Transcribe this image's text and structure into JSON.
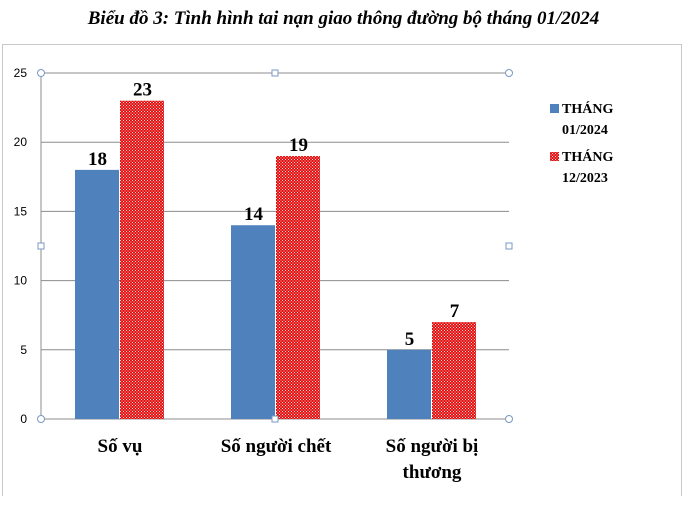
{
  "chart_data": {
    "type": "bar",
    "title": "Biểu đồ 3: Tình hình tai nạn giao thông đường bộ tháng 01/2024",
    "categories": [
      [
        "Số vụ"
      ],
      [
        "Số người chết"
      ],
      [
        "Số người bị",
        "thương"
      ]
    ],
    "series": [
      {
        "name": [
          "THÁNG",
          "01/2024"
        ],
        "values": [
          18,
          14,
          5
        ],
        "color": "#4f81bd",
        "pattern": "solid"
      },
      {
        "name": [
          "THÁNG",
          "12/2023"
        ],
        "values": [
          23,
          19,
          7
        ],
        "color": "#e01010",
        "pattern": "dotted"
      }
    ],
    "yticks": [
      0,
      5,
      10,
      15,
      20,
      25
    ],
    "ylim": [
      0,
      25
    ],
    "grid": true,
    "legend_position": "right"
  }
}
